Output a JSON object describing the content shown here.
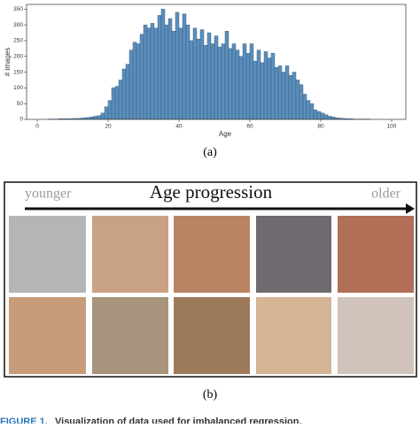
{
  "chart_data": {
    "type": "histogram",
    "x_label": "Age",
    "y_label": "# images",
    "bins": [
      0,
      1,
      2,
      3,
      4,
      5,
      6,
      7,
      8,
      9,
      10,
      11,
      12,
      13,
      14,
      15,
      16,
      17,
      18,
      19,
      20,
      21,
      22,
      23,
      24,
      25,
      26,
      27,
      28,
      29,
      30,
      31,
      32,
      33,
      34,
      35,
      36,
      37,
      38,
      39,
      40,
      41,
      42,
      43,
      44,
      45,
      46,
      47,
      48,
      49,
      50,
      51,
      52,
      53,
      54,
      55,
      56,
      57,
      58,
      59,
      60,
      61,
      62,
      63,
      64,
      65,
      66,
      67,
      68,
      69,
      70,
      71,
      72,
      73,
      74,
      75,
      76,
      77,
      78,
      79,
      80,
      81,
      82,
      83,
      84,
      85,
      86,
      87,
      88,
      89,
      90,
      91,
      92,
      93,
      94,
      95,
      96,
      97,
      98,
      99,
      100
    ],
    "values": [
      0,
      0,
      0,
      1,
      1,
      1,
      2,
      2,
      2,
      2,
      3,
      3,
      4,
      5,
      6,
      8,
      10,
      12,
      20,
      40,
      60,
      100,
      105,
      125,
      160,
      175,
      220,
      245,
      240,
      270,
      300,
      290,
      305,
      290,
      330,
      350,
      300,
      320,
      280,
      340,
      290,
      335,
      300,
      250,
      290,
      255,
      285,
      235,
      275,
      240,
      265,
      230,
      240,
      280,
      225,
      240,
      220,
      200,
      240,
      210,
      240,
      185,
      220,
      180,
      215,
      195,
      210,
      165,
      170,
      150,
      170,
      140,
      150,
      125,
      110,
      80,
      60,
      50,
      30,
      25,
      20,
      15,
      10,
      8,
      5,
      4,
      3,
      2,
      2,
      1,
      1,
      1,
      1,
      1,
      0,
      0,
      0,
      0,
      0,
      0
    ],
    "color": "#5b8fbd",
    "edge_color": "#2d4e6e",
    "xlim": [
      -3,
      104
    ],
    "xticks": [
      0,
      20,
      40,
      60,
      80,
      100
    ],
    "ylim": [
      0,
      365
    ],
    "yticks": [
      0,
      50,
      100,
      150,
      200,
      250,
      300,
      350
    ]
  },
  "panel_a_label": "(a)",
  "progression": {
    "start": "younger",
    "title": "Age progression",
    "end": "older"
  },
  "panel_b_label": "(b)",
  "caption": {
    "label": "FIGURE 1.",
    "text": "Visualization of data used for imbalanced regression."
  }
}
